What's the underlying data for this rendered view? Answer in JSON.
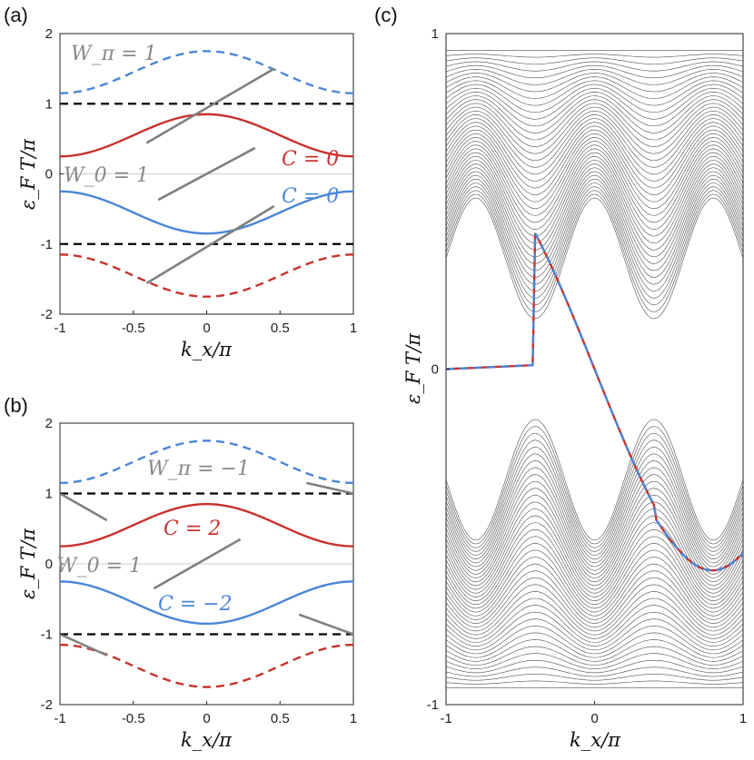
{
  "panel_labels": {
    "a": "(a)",
    "b": "(b)",
    "c": "(c)"
  },
  "colors": {
    "red": "#c8322d",
    "blue": "#4a86d6",
    "gray": "#808080",
    "black": "#000000",
    "spectrum": "#4d4d4d"
  },
  "chart_data": [
    {
      "id": "a",
      "type": "line",
      "xlabel": "k_x/π",
      "ylabel": "ε_F T/π",
      "xlim": [
        -1,
        1
      ],
      "ylim": [
        -2,
        2
      ],
      "xticks": [
        "-1",
        "-0.5",
        "0",
        "0.5",
        "1"
      ],
      "yticks": [
        "2",
        "1",
        "0",
        "-1",
        "-2"
      ],
      "series": [
        {
          "name": "upper band",
          "color": "red",
          "style": "solid",
          "formula": "0.55+0.30cos"
        },
        {
          "name": "lower band",
          "color": "blue",
          "style": "solid",
          "formula": "-(0.55+0.30cos)"
        },
        {
          "name": "upper replica",
          "color": "blue",
          "style": "dashed",
          "formula": "1.45+0.30cos"
        },
        {
          "name": "lower replica",
          "color": "red",
          "style": "dashed",
          "formula": "-(1.45+0.30cos)"
        },
        {
          "name": "zone edge +1",
          "color": "black",
          "style": "dashed",
          "value": 1
        },
        {
          "name": "zone edge -1",
          "color": "black",
          "style": "dashed",
          "value": -1
        },
        {
          "name": "zero",
          "color": "gray",
          "style": "thin",
          "value": 0
        }
      ],
      "edge_segments": [
        {
          "x": [
            -0.41,
            0.46
          ],
          "y": [
            0.44,
            1.5
          ]
        },
        {
          "x": [
            -0.33,
            0.33
          ],
          "y": [
            -0.37,
            0.37
          ]
        },
        {
          "x": [
            -0.41,
            0.46
          ],
          "y": [
            -1.56,
            -0.46
          ]
        }
      ],
      "labels": {
        "w_pi": "W_π = 1",
        "w_0": "W_0 = 1",
        "c_top": "C = 0",
        "c_bottom": "C = 0"
      }
    },
    {
      "id": "b",
      "type": "line",
      "xlabel": "k_x/π",
      "ylabel": "ε_F T/π",
      "xlim": [
        -1,
        1
      ],
      "ylim": [
        -2,
        2
      ],
      "xticks": [
        "-1",
        "-0.5",
        "0",
        "0.5",
        "1"
      ],
      "yticks": [
        "2",
        "1",
        "0",
        "-1",
        "-2"
      ],
      "series": [
        {
          "name": "upper band",
          "color": "red",
          "style": "solid",
          "formula": "0.55+0.30cos"
        },
        {
          "name": "lower band",
          "color": "blue",
          "style": "solid",
          "formula": "-(0.55+0.30cos)"
        },
        {
          "name": "upper replica",
          "color": "blue",
          "style": "dashed",
          "formula": "1.45+0.30cos"
        },
        {
          "name": "lower replica",
          "color": "red",
          "style": "dashed",
          "formula": "-(1.45+0.30cos)"
        },
        {
          "name": "zone edge +1",
          "color": "black",
          "style": "dashed",
          "value": 1
        },
        {
          "name": "zone edge -1",
          "color": "black",
          "style": "dashed",
          "value": -1
        },
        {
          "name": "zero",
          "color": "gray",
          "style": "thin",
          "value": 0
        }
      ],
      "edge_segments": [
        {
          "x": [
            -0.36,
            0.23
          ],
          "y": [
            -0.35,
            0.35
          ]
        },
        {
          "x": [
            -1.0,
            -0.68
          ],
          "y": [
            1.0,
            0.62
          ]
        },
        {
          "x": [
            0.68,
            1.0
          ],
          "y": [
            1.15,
            1.0
          ]
        },
        {
          "x": [
            -1.0,
            -0.68
          ],
          "y": [
            -1.0,
            -1.3
          ]
        },
        {
          "x": [
            0.63,
            1.0
          ],
          "y": [
            -0.72,
            -1.0
          ]
        }
      ],
      "labels": {
        "w_pi": "W_π = −1",
        "w_0": "W_0 = 1",
        "c_top": "C = 2",
        "c_bottom": "C = −2"
      }
    },
    {
      "id": "c",
      "type": "line",
      "xlabel": "k_x/π",
      "ylabel": "ε_F T/π",
      "xlim": [
        -1,
        1
      ],
      "ylim": [
        -1,
        1
      ],
      "xticks": [
        "-1",
        "0",
        "1"
      ],
      "yticks": [
        "1",
        "0",
        "-1"
      ],
      "bulk_band_count": 40,
      "edge_states": [
        {
          "name": "chiral 0-mode",
          "color": "red",
          "style": "solid",
          "x": [
            -1,
            -0.6,
            -0.4,
            0,
            0.4,
            0.6,
            0.73
          ],
          "y": [
            0,
            0.03,
            0.1,
            0,
            -0.6,
            -0.6,
            -0.44
          ]
        },
        {
          "name": "chiral 0-mode partner",
          "color": "blue",
          "style": "dashed",
          "x": [
            -1,
            -0.6,
            -0.4,
            0,
            0.4,
            0.6,
            0.73
          ],
          "y": [
            0,
            0.03,
            -0.44,
            0,
            -0.6,
            -0.6,
            -0.44
          ]
        }
      ]
    }
  ]
}
